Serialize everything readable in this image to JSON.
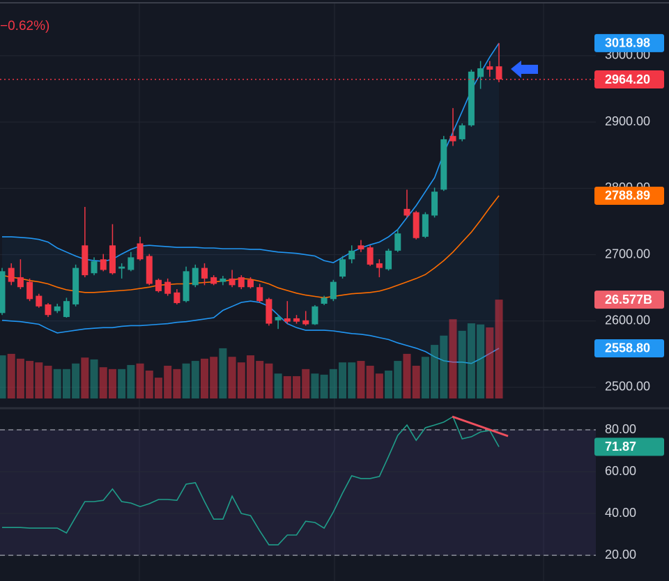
{
  "chart_data": {
    "type": "candlestick",
    "change_label": "−0.62%)",
    "ylim": [
      2480,
      3084
    ],
    "yticks": [
      {
        "value": 2500,
        "label": "2500.00"
      },
      {
        "value": 2600,
        "label": "2600.00"
      },
      {
        "value": 2700,
        "label": "2700.00"
      },
      {
        "value": 2800,
        "label": "2800.00"
      },
      {
        "value": 2900,
        "label": "2900.00"
      },
      {
        "value": 3000,
        "label": "3000.00"
      }
    ],
    "grid": true,
    "colors": {
      "up": "#22a091",
      "down": "#f23645"
    },
    "ohlc": {
      "open": [
        2612,
        2680,
        2666,
        2659,
        2638,
        2625,
        2615,
        2606,
        2625,
        2714,
        2672,
        2693,
        2714,
        2679,
        2677,
        2717,
        2698,
        2662,
        2659,
        2643,
        2630,
        2654,
        2680,
        2666,
        2659,
        2664,
        2666,
        2662,
        2651,
        2633,
        2601,
        2604,
        2604,
        2601,
        2595,
        2626,
        2633,
        2667,
        2693,
        2714,
        2711,
        2687,
        2678,
        2706,
        2769,
        2764,
        2727,
        2759,
        2798,
        2879,
        2874,
        2895,
        2968,
        2984,
        2984
      ],
      "high": [
        2680,
        2687,
        2693,
        2664,
        2641,
        2627,
        2626,
        2635,
        2685,
        2772,
        2696,
        2701,
        2746,
        2687,
        2704,
        2727,
        2701,
        2664,
        2664,
        2648,
        2682,
        2685,
        2687,
        2669,
        2668,
        2677,
        2669,
        2666,
        2656,
        2635,
        2609,
        2630,
        2609,
        2615,
        2624,
        2638,
        2662,
        2698,
        2714,
        2722,
        2714,
        2693,
        2709,
        2738,
        2798,
        2766,
        2764,
        2801,
        2879,
        2921,
        2898,
        2979,
        2992,
        2992,
        3019
      ],
      "low": [
        2609,
        2654,
        2648,
        2630,
        2620,
        2606,
        2612,
        2605,
        2622,
        2666,
        2669,
        2675,
        2670,
        2664,
        2675,
        2691,
        2654,
        2643,
        2638,
        2625,
        2628,
        2651,
        2654,
        2654,
        2654,
        2651,
        2648,
        2649,
        2628,
        2593,
        2588,
        2596,
        2596,
        2593,
        2594,
        2624,
        2630,
        2664,
        2687,
        2704,
        2683,
        2666,
        2676,
        2704,
        2756,
        2723,
        2725,
        2756,
        2796,
        2864,
        2871,
        2893,
        2950,
        2968,
        2960
      ],
      "close": [
        2675,
        2659,
        2651,
        2633,
        2622,
        2609,
        2622,
        2630,
        2680,
        2669,
        2690,
        2677,
        2672,
        2682,
        2696,
        2693,
        2656,
        2645,
        2641,
        2627,
        2675,
        2680,
        2664,
        2656,
        2664,
        2654,
        2651,
        2651,
        2630,
        2596,
        2606,
        2599,
        2599,
        2595,
        2622,
        2635,
        2659,
        2693,
        2706,
        2708,
        2685,
        2680,
        2706,
        2732,
        2759,
        2725,
        2761,
        2795,
        2874,
        2871,
        2895,
        2976,
        2981,
        2979,
        2964.2
      ],
      "last_label": "2964.20"
    },
    "bands": {
      "upper": {
        "color": "#2196f3",
        "last_label": "3018.98",
        "values": [
          2727,
          2727,
          2726,
          2725,
          2723,
          2719,
          2710,
          2704,
          2698,
          2693,
          2691,
          2690,
          2693,
          2701,
          2708,
          2713,
          2714,
          2713,
          2712,
          2711,
          2711,
          2711,
          2710,
          2710,
          2709,
          2709,
          2709,
          2708,
          2708,
          2706,
          2704,
          2703,
          2702,
          2700,
          2698,
          2691,
          2688,
          2696,
          2704,
          2710,
          2715,
          2719,
          2727,
          2738,
          2756,
          2774,
          2795,
          2816,
          2853,
          2885,
          2916,
          2948,
          2974,
          2998,
          3018.98
        ]
      },
      "middle": {
        "color": "#ff6d00",
        "last_label": "2788.89",
        "values": [
          2669,
          2666,
          2664,
          2661,
          2659,
          2656,
          2651,
          2647,
          2645,
          2643,
          2643,
          2644,
          2645,
          2646,
          2647,
          2649,
          2651,
          2654,
          2655,
          2656,
          2656,
          2657,
          2658,
          2659,
          2660,
          2662,
          2664,
          2663,
          2660,
          2656,
          2650,
          2646,
          2642,
          2639,
          2637,
          2635,
          2637,
          2639,
          2641,
          2642,
          2643,
          2645,
          2649,
          2654,
          2659,
          2664,
          2670,
          2680,
          2691,
          2704,
          2719,
          2734,
          2752,
          2771,
          2788.89
        ]
      },
      "lower": {
        "color": "#2196f3",
        "last_label": "2558.80",
        "values": [
          2601,
          2600,
          2599,
          2597,
          2595,
          2588,
          2582,
          2584,
          2586,
          2588,
          2589,
          2590,
          2590,
          2592,
          2593,
          2593,
          2594,
          2595,
          2596,
          2598,
          2599,
          2601,
          2603,
          2605,
          2616,
          2622,
          2628,
          2630,
          2628,
          2622,
          2609,
          2596,
          2590,
          2586,
          2586,
          2586,
          2585,
          2583,
          2581,
          2580,
          2578,
          2575,
          2572,
          2567,
          2563,
          2559,
          2554,
          2546,
          2540,
          2538,
          2538,
          2536,
          2543,
          2551,
          2558.8
        ]
      }
    },
    "volume": {
      "ylim": [
        0,
        106
      ],
      "badge_color": "#ef5f6b",
      "last_label": "26.577B",
      "values": [
        11.6,
        12.0,
        10.7,
        10.1,
        9.7,
        8.8,
        7.9,
        7.9,
        9.4,
        11.0,
        10.5,
        8.4,
        7.9,
        7.9,
        9.0,
        9.4,
        7.5,
        5.6,
        8.8,
        7.9,
        9.4,
        10.1,
        10.7,
        11.2,
        13.5,
        11.2,
        9.7,
        11.6,
        10.1,
        9.4,
        6.7,
        6.0,
        6.0,
        7.9,
        6.7,
        6.4,
        7.9,
        9.7,
        9.7,
        10.1,
        8.8,
        6.7,
        7.5,
        10.1,
        12.0,
        8.8,
        11.2,
        14.4,
        16.9,
        21.3,
        18.2,
        20.2,
        19.9,
        19.1,
        26.577
      ]
    },
    "rsi": {
      "ylim": [
        7.7,
        89
      ],
      "yticks": [
        {
          "value": 20,
          "label": "20.00"
        },
        {
          "value": 40,
          "label": "40.00"
        },
        {
          "value": 60,
          "label": "60.00"
        },
        {
          "value": 80,
          "label": "80.00"
        }
      ],
      "levels": [
        20,
        80
      ],
      "color": "#1f9e8a",
      "last_label": "71.87",
      "values": [
        33.3,
        33.3,
        33.3,
        33.0,
        33.0,
        33.0,
        33.0,
        30.7,
        38.3,
        45.7,
        45.7,
        46.3,
        51.7,
        45.7,
        45.0,
        43.3,
        44.7,
        46.7,
        46.7,
        46.3,
        54.0,
        54.7,
        45.7,
        37.3,
        37.3,
        48.3,
        40.0,
        39.0,
        31.7,
        25.0,
        25.0,
        29.7,
        29.7,
        36.3,
        35.7,
        33.0,
        40.7,
        49.7,
        58.0,
        56.7,
        56.7,
        57.7,
        67.3,
        77.3,
        82.3,
        75.0,
        81.0,
        82.3,
        83.7,
        86.3,
        75.7,
        76.7,
        79.0,
        79.7,
        71.87
      ]
    }
  }
}
